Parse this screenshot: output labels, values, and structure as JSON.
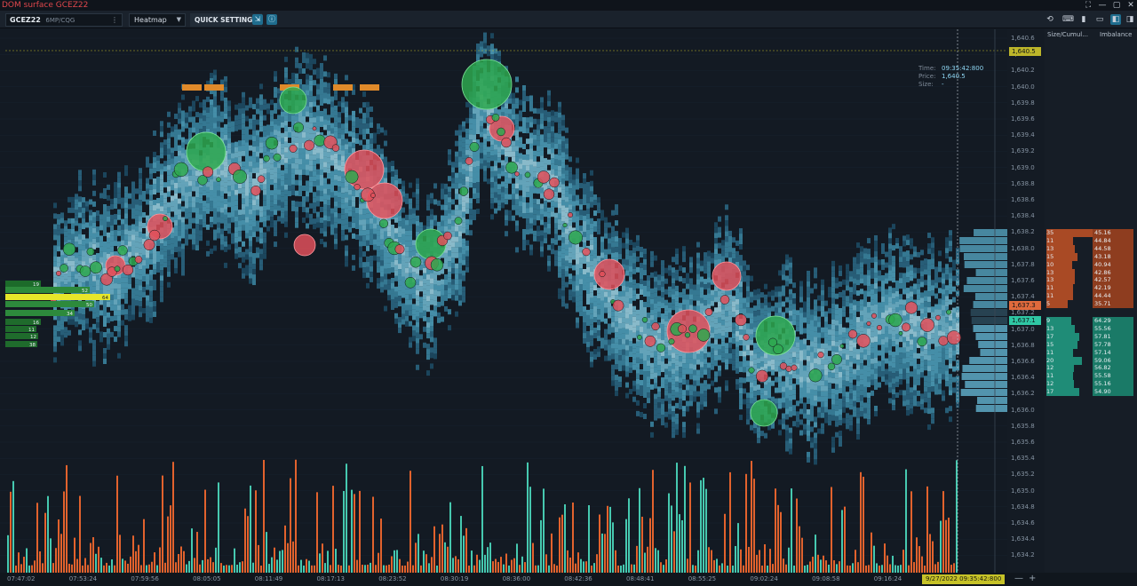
{
  "window": {
    "title": "DOM surface GCEZ22",
    "controls": [
      "⛶",
      "—",
      "▢",
      "✕"
    ]
  },
  "toolbar": {
    "symbol": "GCEZ22",
    "feed": "6MP/CQG",
    "view": "Heatmap",
    "quick_settings": "QUICK SETTINGS",
    "icon_left_1": "⇲",
    "icon_left_2": "ⓘ"
  },
  "infobox": {
    "time_label": "Time:",
    "time_value": "09:35:42:800",
    "price_label": "Price:",
    "price_value": "1,640.5",
    "size_label": "Size:",
    "size_value": "-"
  },
  "price_axis": {
    "ticks": [
      "1,640.6",
      "1,640.5",
      "1,640.2",
      "1,640.0",
      "1,639.8",
      "1,639.6",
      "1,639.4",
      "1,639.2",
      "1,639.0",
      "1,638.8",
      "1,638.6",
      "1,638.4",
      "1,638.2",
      "1,638.0",
      "1,637.8",
      "1,637.6",
      "1,637.4",
      "1,637.2",
      "1,637.0",
      "1,636.8",
      "1,636.6",
      "1,636.4",
      "1,636.2",
      "1,636.0",
      "1,635.8",
      "1,635.6",
      "1,635.4",
      "1,635.2",
      "1,635.0",
      "1,634.8",
      "1,634.6",
      "1,634.4",
      "1,634.2"
    ],
    "top_tag": "1,640.5",
    "ask_tag": "1,637.3",
    "bid_tag": "1,637.1",
    "top_tag_color": "#bdb62a",
    "ask_tag_color": "#e06a3c",
    "bid_tag_color": "#2fc7a4"
  },
  "dom": {
    "size_header": "Size/Cumul...",
    "imbalance_header": "Imbalance",
    "asks": [
      {
        "size": "35",
        "imb": "45.16"
      },
      {
        "size": "11",
        "imb": "44.84"
      },
      {
        "size": "13",
        "imb": "44.58"
      },
      {
        "size": "15",
        "imb": "43.18"
      },
      {
        "size": "10",
        "imb": "40.94"
      },
      {
        "size": "13",
        "imb": "42.86"
      },
      {
        "size": "13",
        "imb": "42.57"
      },
      {
        "size": "11",
        "imb": "42.19"
      },
      {
        "size": "11",
        "imb": "44.44"
      },
      {
        "size": "5",
        "imb": "35.71"
      }
    ],
    "bids": [
      {
        "size": "9",
        "imb": "64.29"
      },
      {
        "size": "13",
        "imb": "55.56"
      },
      {
        "size": "17",
        "imb": "57.81"
      },
      {
        "size": "15",
        "imb": "57.78"
      },
      {
        "size": "11",
        "imb": "57.14"
      },
      {
        "size": "20",
        "imb": "59.06"
      },
      {
        "size": "12",
        "imb": "56.82"
      },
      {
        "size": "11",
        "imb": "55.58"
      },
      {
        "size": "12",
        "imb": "55.16"
      },
      {
        "size": "17",
        "imb": "54.90"
      }
    ]
  },
  "left_profile": {
    "labels": [
      "19",
      "52",
      "64",
      "50",
      "34",
      "16",
      "11",
      "12",
      "38"
    ]
  },
  "time_axis": {
    "ticks": [
      "07:47:02",
      "07:53:24",
      "07:59:56",
      "08:05:05",
      "08:11:49",
      "08:17:13",
      "08:23:52",
      "08:30:19",
      "08:36:00",
      "08:42:36",
      "08:48:41",
      "08:55:25",
      "09:02:24",
      "09:08:58",
      "09:16:24"
    ],
    "current": "9/27/2022 09:35:42:800",
    "zoom_out": "—",
    "zoom_in": "+"
  },
  "colors": {
    "buy": "#2ea84f",
    "sell": "#e0505a",
    "heat_low": "#1d4e66",
    "heat_mid": "#4fa3bf",
    "heat_high": "#9fd7e8",
    "volume_sell": "#e2622d",
    "volume_buy": "#46c9b0"
  }
}
